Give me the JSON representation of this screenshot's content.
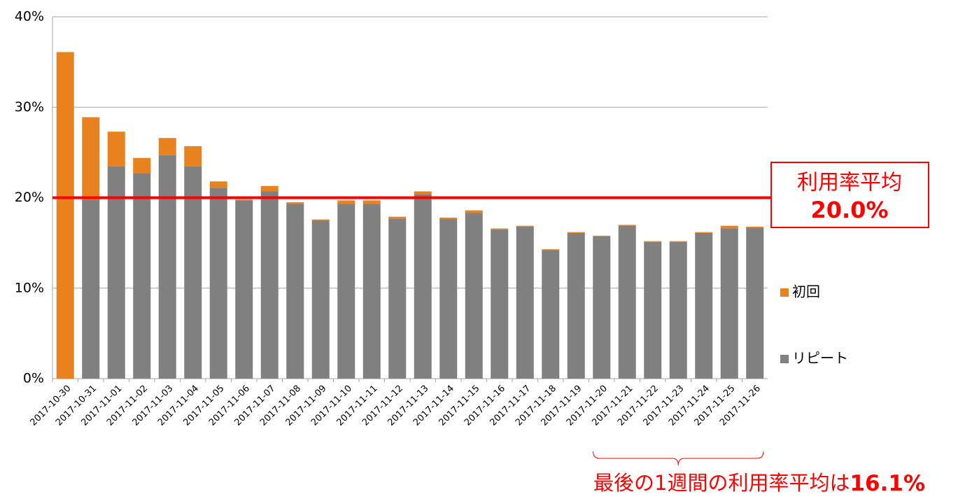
{
  "chart_data": {
    "type": "stacked_bar",
    "categories": [
      "2017-10-30",
      "2017-10-31",
      "2017-11-01",
      "2017-11-02",
      "2017-11-03",
      "2017-11-04",
      "2017-11-05",
      "2017-11-06",
      "2017-11-07",
      "2017-11-08",
      "2017-11-09",
      "2017-11-10",
      "2017-11-11",
      "2017-11-12",
      "2017-11-13",
      "2017-11-14",
      "2017-11-15",
      "2017-11-16",
      "2017-11-17",
      "2017-11-18",
      "2017-11-19",
      "2017-11-20",
      "2017-11-21",
      "2017-11-22",
      "2017-11-23",
      "2017-11-24",
      "2017-11-25",
      "2017-11-26"
    ],
    "series": [
      {
        "name": "リピート",
        "color": "#808080",
        "values": [
          0,
          19.8,
          23.5,
          22.7,
          24.7,
          23.5,
          21.1,
          19.7,
          20.7,
          19.3,
          17.5,
          19.3,
          19.3,
          17.7,
          20.4,
          17.6,
          18.3,
          16.5,
          16.8,
          14.2,
          16.1,
          15.7,
          16.9,
          15.1,
          15.1,
          16.1,
          16.6,
          16.7
        ]
      },
      {
        "name": "初回",
        "color": "#e8821e",
        "values": [
          36.1,
          9.1,
          3.8,
          1.7,
          1.9,
          2.2,
          0.7,
          0.1,
          0.6,
          0.2,
          0.1,
          0.4,
          0.4,
          0.2,
          0.3,
          0.2,
          0.3,
          0.1,
          0.1,
          0.1,
          0.1,
          0.1,
          0.1,
          0.1,
          0.1,
          0.1,
          0.3,
          0.1
        ]
      }
    ],
    "ylim": [
      0,
      40
    ],
    "yticks": [
      {
        "value": 0,
        "label": "0%"
      },
      {
        "value": 10,
        "label": "10%"
      },
      {
        "value": 20,
        "label": "20%"
      },
      {
        "value": 30,
        "label": "30%"
      },
      {
        "value": 40,
        "label": "40%"
      }
    ],
    "grid": true,
    "legend": "right",
    "average_line": {
      "value": 20,
      "color": "#ff0000"
    },
    "annotations": {
      "average_title": "利用率平均",
      "average_value": {
        "value": 20,
        "label": "20.0%"
      },
      "last_week_text": "最後の1週間の利用率平均は",
      "last_week_value": {
        "value": 16.1,
        "label": "16.1%"
      }
    }
  }
}
